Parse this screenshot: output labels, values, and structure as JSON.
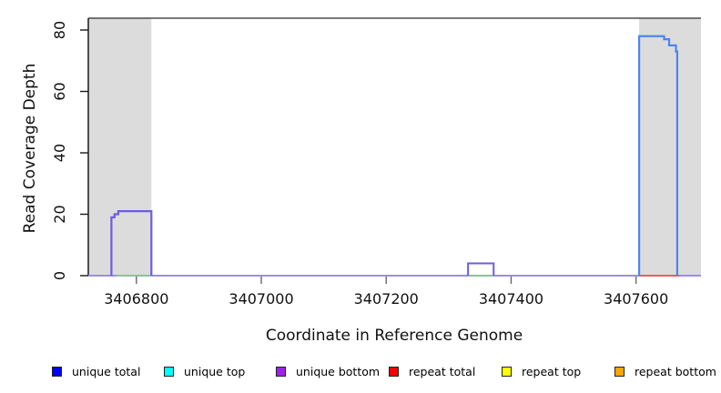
{
  "chart_data": {
    "type": "line",
    "subtype": "step-coverage-plot",
    "title": "",
    "xlabel": "Coordinate in Reference Genome",
    "ylabel": "Read Coverage Depth",
    "xlim": [
      3406723,
      3407704
    ],
    "ylim": [
      0,
      83.9
    ],
    "grid": false,
    "legend_position": "bottom",
    "x_ticks": {
      "values": [
        3406800,
        3407000,
        3407200,
        3407400,
        3407600
      ],
      "labels": [
        "3406800",
        "3407000",
        "3407200",
        "3407400",
        "3407600"
      ]
    },
    "y_ticks": {
      "values": [
        0,
        20,
        40,
        60,
        80
      ],
      "labels": [
        "0",
        "20",
        "40",
        "60",
        "80"
      ]
    },
    "highlight_regions": [
      {
        "name": "left-gray-region",
        "start": 3406723,
        "end": 3406824,
        "color": "#dcdcdc"
      },
      {
        "name": "right-gray-region",
        "start": 3407605,
        "end": 3407704,
        "color": "#dcdcdc"
      }
    ],
    "series": [
      {
        "name": "unique total",
        "color": "#0000ff",
        "segments": [
          [
            3406723,
            3406760,
            0
          ],
          [
            3406760,
            3406765,
            19
          ],
          [
            3406765,
            3406771,
            20
          ],
          [
            3406771,
            3406824,
            21
          ],
          [
            3406824,
            3407331,
            0
          ],
          [
            3407331,
            3407372,
            4
          ],
          [
            3407372,
            3407605,
            0
          ],
          [
            3407605,
            3407645,
            78
          ],
          [
            3407645,
            3407653,
            77
          ],
          [
            3407653,
            3407664,
            75
          ],
          [
            3407664,
            3407666,
            73
          ],
          [
            3407666,
            3407704,
            0
          ]
        ]
      },
      {
        "name": "unique top",
        "color": "#00ffff",
        "segments": [
          [
            3406723,
            3407704,
            0
          ]
        ]
      },
      {
        "name": "unique bottom",
        "color": "#a020f0",
        "segments": [
          [
            3406723,
            3406760,
            0
          ],
          [
            3406760,
            3406765,
            19
          ],
          [
            3406765,
            3406771,
            20
          ],
          [
            3406771,
            3406824,
            21
          ],
          [
            3406824,
            3407331,
            0
          ],
          [
            3407331,
            3407372,
            4
          ],
          [
            3407372,
            3407704,
            0
          ]
        ]
      },
      {
        "name": "repeat total",
        "color": "#ff0000",
        "segments": [
          [
            3406723,
            3407605,
            0
          ],
          [
            3407605,
            3407669,
            0
          ],
          [
            3407669,
            3407704,
            0
          ]
        ]
      },
      {
        "name": "repeat top",
        "color": "#ffff00",
        "segments": [
          [
            3406723,
            3407704,
            0
          ]
        ]
      },
      {
        "name": "repeat bottom",
        "color": "#ffa500",
        "segments": [
          [
            3406723,
            3407704,
            0
          ]
        ]
      }
    ],
    "rendered_lines": [
      {
        "name": "zero-baseline",
        "color": "#9b8cee",
        "width": 2,
        "points": [
          [
            3406723,
            0
          ],
          [
            3407704,
            0
          ]
        ]
      },
      {
        "name": "green-overlap-left",
        "color": "#8bc98b",
        "width": 1.8,
        "points": [
          [
            3406768,
            0
          ],
          [
            3406824,
            0
          ]
        ]
      },
      {
        "name": "green-overlap-middle",
        "color": "#8bc98b",
        "width": 1.8,
        "points": [
          [
            3407331,
            0
          ],
          [
            3407372,
            0
          ]
        ]
      },
      {
        "name": "repeat-total-line",
        "color": "#ef5865",
        "width": 2,
        "points": [
          [
            3407605,
            0
          ],
          [
            3407669,
            0
          ]
        ]
      },
      {
        "name": "unique-left-peak",
        "color": "#6c5ce6",
        "width": 2.2,
        "points": [
          [
            3406760,
            0
          ],
          [
            3406760,
            19
          ],
          [
            3406765,
            19
          ],
          [
            3406765,
            20
          ],
          [
            3406771,
            20
          ],
          [
            3406771,
            21
          ],
          [
            3406824,
            21
          ],
          [
            3406824,
            0
          ]
        ]
      },
      {
        "name": "unique-middle-peak",
        "color": "#6c5ce6",
        "width": 2,
        "points": [
          [
            3407331,
            0
          ],
          [
            3407331,
            4
          ],
          [
            3407372,
            4
          ],
          [
            3407372,
            0
          ]
        ]
      },
      {
        "name": "unique-right-peak",
        "color": "#4b86ef",
        "width": 2.2,
        "points": [
          [
            3407605,
            0
          ],
          [
            3407605,
            78
          ],
          [
            3407645,
            78
          ],
          [
            3407645,
            77
          ],
          [
            3407653,
            77
          ],
          [
            3407653,
            75
          ],
          [
            3407664,
            75
          ],
          [
            3407664,
            73
          ],
          [
            3407666,
            73
          ],
          [
            3407666,
            0
          ]
        ]
      }
    ]
  },
  "legend": {
    "items": [
      {
        "label": "unique total",
        "color": "#0000ff"
      },
      {
        "label": "unique top",
        "color": "#00ffff"
      },
      {
        "label": "unique bottom",
        "color": "#a020f0"
      },
      {
        "label": "repeat total",
        "color": "#ff0000"
      },
      {
        "label": "repeat top",
        "color": "#ffff00"
      },
      {
        "label": "repeat bottom",
        "color": "#ffa500"
      }
    ]
  },
  "colors": {
    "plot_background": "#ffffff",
    "highlight": "#dcdcdc",
    "axis_line": "#1a1a1a",
    "top_border": "#4d4d4d",
    "tick": "#666666"
  }
}
